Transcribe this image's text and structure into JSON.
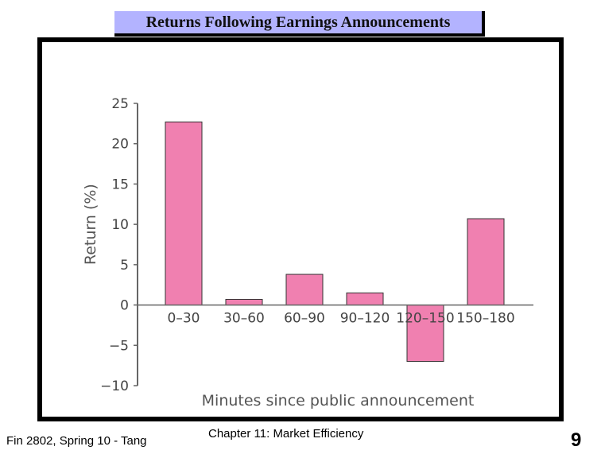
{
  "slide": {
    "title": "Returns Following Earnings Announcements",
    "footer_left": "Fin 2802, Spring 10 - Tang",
    "footer_center": "Chapter 11: Market Efficiency",
    "page_number": "9"
  },
  "chart_data": {
    "type": "bar",
    "title": "",
    "xlabel": "Minutes since public announcement",
    "ylabel": "Return (%)",
    "categories": [
      "0–30",
      "30–60",
      "60–90",
      "90–120",
      "120–150",
      "150–180"
    ],
    "values": [
      22.7,
      0.7,
      3.8,
      1.5,
      -7.0,
      10.7
    ],
    "ylim": [
      -10,
      25
    ],
    "yticks": [
      25,
      20,
      15,
      10,
      5,
      0,
      -5,
      -10
    ],
    "ytick_labels": [
      "25",
      "20",
      "15",
      "10",
      "5",
      "0",
      "−5",
      "−10"
    ],
    "grid": false,
    "bar_color": "#f080b0"
  }
}
